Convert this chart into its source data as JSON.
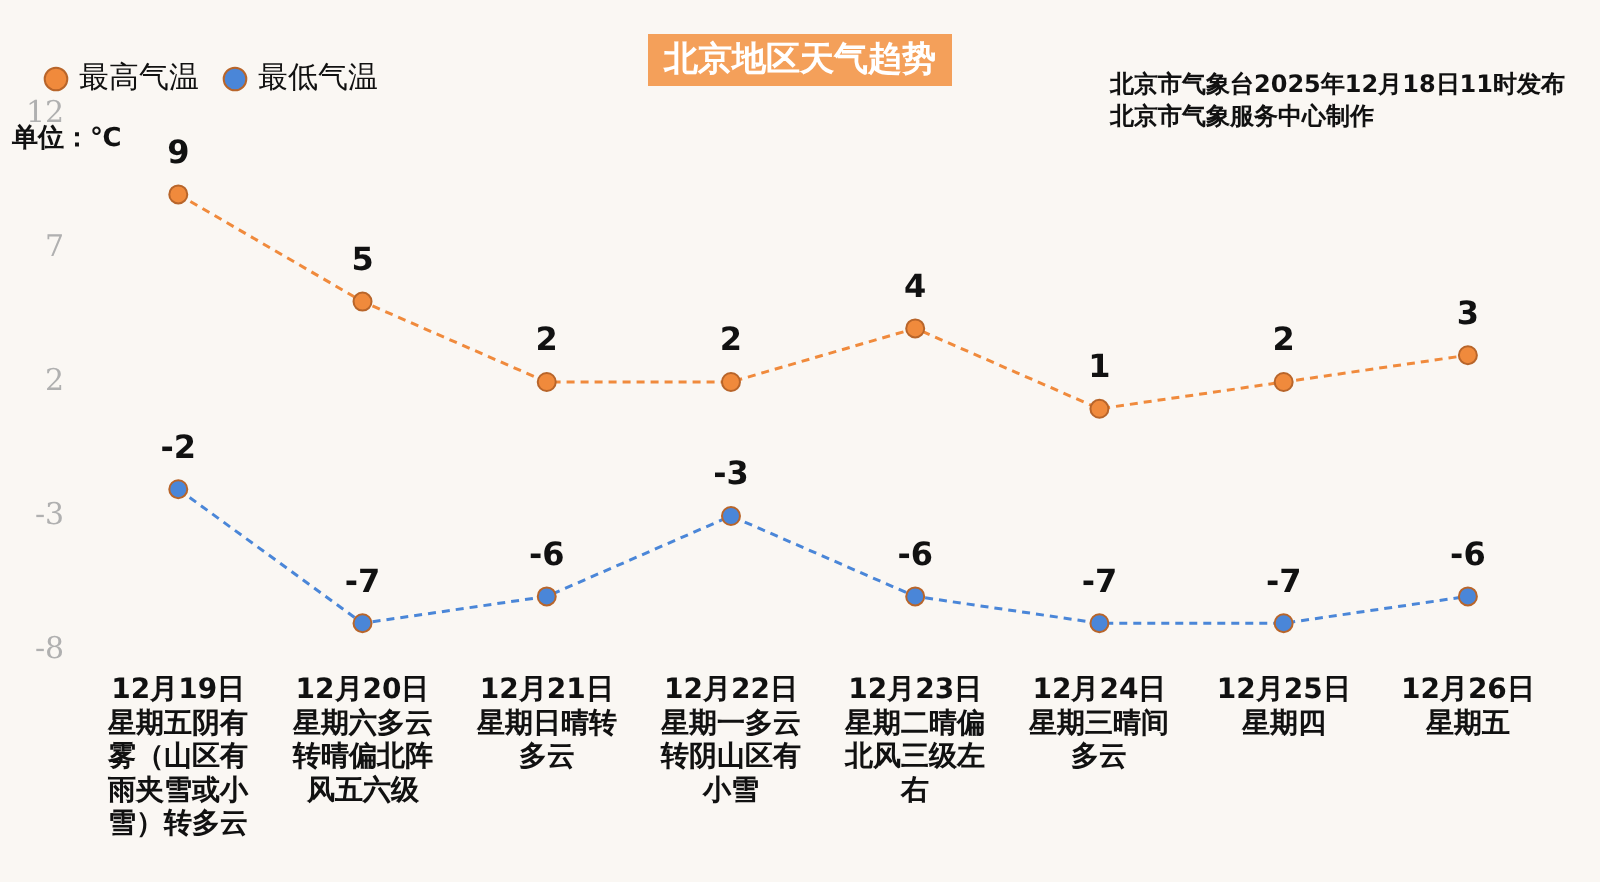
{
  "chart_data": {
    "type": "line",
    "title": "北京地区天气趋势",
    "ylabel": "单位：℃",
    "annotations": [
      "北京市气象台2025年12月18日11时发布",
      "北京市气象服务中心制作"
    ],
    "categories": [
      "12月19日星期五阴有雾（山区有雨夹雪或小雪）转多云",
      "12月20日星期六多云转晴偏北阵风五六级",
      "12月21日星期日晴转多云",
      "12月22日星期一多云转阴山区有小雪",
      "12月23日星期二晴偏北风三级左右",
      "12月24日星期三晴间多云",
      "12月25日星期四",
      "12月26日星期五"
    ],
    "series": [
      {
        "name": "最高气温",
        "color": "#f08a3c",
        "values": [
          9,
          5,
          2,
          2,
          4,
          1,
          2,
          3
        ]
      },
      {
        "name": "最低气温",
        "color": "#4a86d8",
        "values": [
          -2,
          -7,
          -6,
          -3,
          -6,
          -7,
          -7,
          -6
        ]
      }
    ],
    "ylim": [
      -8,
      12
    ],
    "yticks": [
      -8,
      -3,
      2,
      7,
      12
    ],
    "grid": false,
    "legend": "top left",
    "marker": "circle",
    "line_style": "dashed",
    "data_labels": true
  }
}
